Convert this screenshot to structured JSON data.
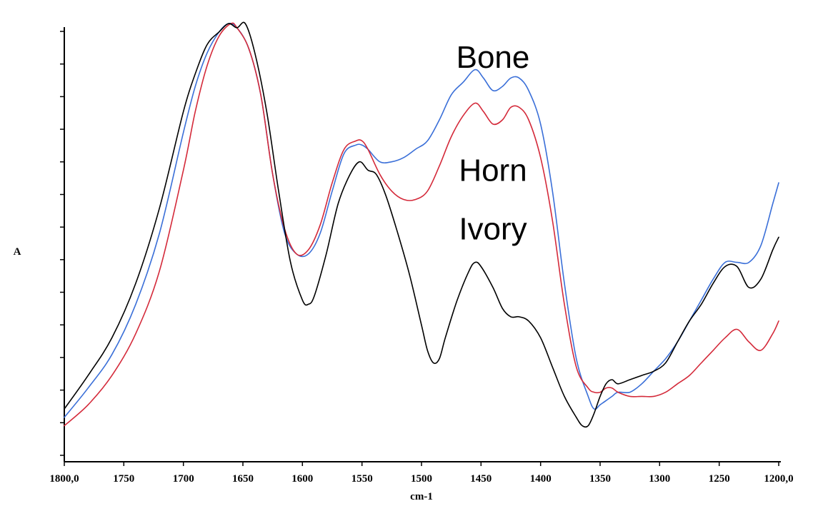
{
  "chart_data": {
    "type": "line",
    "title": "",
    "xlabel": "cm-1",
    "ylabel": "A",
    "xlim": [
      1800,
      1200
    ],
    "ylim": [
      0,
      1
    ],
    "grid": false,
    "x_tick_labels": [
      "1800,0",
      "1750",
      "1700",
      "1650",
      "1600",
      "1550",
      "1500",
      "1450",
      "1400",
      "1350",
      "1300",
      "1250",
      "1200,0"
    ],
    "x_tick_values": [
      1800,
      1750,
      1700,
      1650,
      1600,
      1550,
      1500,
      1450,
      1400,
      1350,
      1300,
      1250,
      1200
    ],
    "y_minor_tick_count": 14,
    "annotations": [
      {
        "text": "Bone",
        "x": 1440,
        "y": 0.92,
        "color": "#000000"
      },
      {
        "text": "Horn",
        "x": 1440,
        "y": 0.65,
        "color": "#000000"
      },
      {
        "text": "Ivory",
        "x": 1440,
        "y": 0.51,
        "color": "#000000"
      }
    ],
    "series": [
      {
        "name": "Bone",
        "color": "#3a6fd8",
        "x": [
          1800,
          1780,
          1760,
          1740,
          1720,
          1700,
          1690,
          1680,
          1670,
          1662,
          1655,
          1645,
          1635,
          1625,
          1615,
          1605,
          1595,
          1585,
          1575,
          1565,
          1555,
          1550,
          1545,
          1535,
          1525,
          1515,
          1505,
          1495,
          1485,
          1475,
          1465,
          1455,
          1448,
          1440,
          1432,
          1425,
          1418,
          1410,
          1400,
          1390,
          1380,
          1370,
          1360,
          1355,
          1350,
          1345,
          1340,
          1335,
          1325,
          1315,
          1305,
          1295,
          1285,
          1275,
          1265,
          1255,
          1245,
          1235,
          1225,
          1215,
          1205,
          1200
        ],
        "y": [
          0.06,
          0.13,
          0.21,
          0.33,
          0.5,
          0.74,
          0.85,
          0.93,
          0.98,
          1.0,
          0.99,
          0.94,
          0.83,
          0.64,
          0.5,
          0.45,
          0.45,
          0.5,
          0.6,
          0.69,
          0.71,
          0.71,
          0.7,
          0.67,
          0.67,
          0.68,
          0.7,
          0.72,
          0.77,
          0.83,
          0.86,
          0.89,
          0.87,
          0.84,
          0.85,
          0.87,
          0.87,
          0.84,
          0.76,
          0.6,
          0.38,
          0.2,
          0.11,
          0.08,
          0.09,
          0.1,
          0.11,
          0.12,
          0.12,
          0.14,
          0.17,
          0.2,
          0.24,
          0.29,
          0.34,
          0.39,
          0.43,
          0.43,
          0.43,
          0.47,
          0.57,
          0.62
        ]
      },
      {
        "name": "Horn",
        "color": "#d42a3a",
        "x": [
          1800,
          1780,
          1760,
          1740,
          1720,
          1700,
          1690,
          1680,
          1670,
          1660,
          1655,
          1645,
          1635,
          1625,
          1615,
          1605,
          1595,
          1585,
          1575,
          1565,
          1555,
          1550,
          1545,
          1535,
          1525,
          1515,
          1505,
          1495,
          1485,
          1475,
          1465,
          1455,
          1448,
          1440,
          1432,
          1425,
          1418,
          1410,
          1400,
          1390,
          1380,
          1370,
          1360,
          1355,
          1350,
          1345,
          1340,
          1335,
          1325,
          1315,
          1305,
          1295,
          1285,
          1275,
          1265,
          1255,
          1245,
          1235,
          1225,
          1215,
          1205,
          1200
        ],
        "y": [
          0.04,
          0.09,
          0.16,
          0.26,
          0.41,
          0.65,
          0.79,
          0.9,
          0.97,
          1.0,
          0.99,
          0.94,
          0.83,
          0.64,
          0.51,
          0.45,
          0.46,
          0.52,
          0.62,
          0.7,
          0.72,
          0.72,
          0.7,
          0.64,
          0.6,
          0.58,
          0.58,
          0.6,
          0.66,
          0.73,
          0.78,
          0.81,
          0.79,
          0.76,
          0.77,
          0.8,
          0.8,
          0.77,
          0.68,
          0.53,
          0.33,
          0.18,
          0.13,
          0.12,
          0.12,
          0.13,
          0.13,
          0.12,
          0.11,
          0.11,
          0.11,
          0.12,
          0.14,
          0.16,
          0.19,
          0.22,
          0.25,
          0.27,
          0.24,
          0.22,
          0.26,
          0.29
        ]
      },
      {
        "name": "Ivory",
        "color": "#000000",
        "x": [
          1800,
          1780,
          1760,
          1740,
          1720,
          1700,
          1690,
          1680,
          1670,
          1662,
          1655,
          1648,
          1640,
          1630,
          1620,
          1610,
          1600,
          1595,
          1590,
          1580,
          1570,
          1560,
          1552,
          1545,
          1538,
          1530,
          1520,
          1510,
          1500,
          1495,
          1490,
          1485,
          1480,
          1470,
          1460,
          1455,
          1450,
          1440,
          1432,
          1425,
          1418,
          1410,
          1400,
          1390,
          1380,
          1370,
          1365,
          1360,
          1355,
          1350,
          1345,
          1340,
          1335,
          1325,
          1315,
          1305,
          1295,
          1285,
          1275,
          1265,
          1255,
          1245,
          1235,
          1225,
          1215,
          1205,
          1200
        ],
        "y": [
          0.08,
          0.16,
          0.25,
          0.38,
          0.56,
          0.79,
          0.88,
          0.95,
          0.98,
          1.0,
          0.99,
          1.0,
          0.93,
          0.79,
          0.6,
          0.43,
          0.34,
          0.33,
          0.35,
          0.45,
          0.57,
          0.64,
          0.67,
          0.65,
          0.64,
          0.59,
          0.5,
          0.4,
          0.28,
          0.22,
          0.19,
          0.2,
          0.25,
          0.34,
          0.41,
          0.43,
          0.42,
          0.37,
          0.32,
          0.3,
          0.3,
          0.29,
          0.25,
          0.18,
          0.11,
          0.06,
          0.04,
          0.04,
          0.07,
          0.11,
          0.14,
          0.15,
          0.14,
          0.15,
          0.16,
          0.17,
          0.19,
          0.24,
          0.29,
          0.33,
          0.38,
          0.42,
          0.42,
          0.37,
          0.39,
          0.46,
          0.49
        ]
      }
    ]
  }
}
